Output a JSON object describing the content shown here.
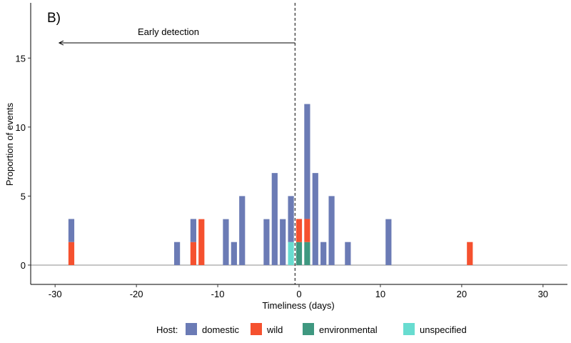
{
  "chart_data": {
    "type": "bar",
    "stacked": true,
    "panel_label": "B)",
    "xlabel": "Timeliness (days)",
    "ylabel": "Proportion of events",
    "xlim": [
      -33,
      33
    ],
    "ylim": [
      -1.4,
      19
    ],
    "x_ticks": [
      -30,
      -20,
      -10,
      0,
      10,
      20,
      30
    ],
    "y_ticks": [
      0,
      5,
      10,
      15
    ],
    "reference_line_x": -0.5,
    "annotation": {
      "text": "Early detection",
      "arrow_from_x": -0.5,
      "arrow_to_x": -29.5,
      "arrow_y": 16.1
    },
    "legend": {
      "title": "Host:",
      "position": "bottom"
    },
    "series": [
      {
        "name": "domestic",
        "color": "#6B7BB5"
      },
      {
        "name": "wild",
        "color": "#F5512F"
      },
      {
        "name": "environmental",
        "color": "#3F9880"
      },
      {
        "name": "unspecified",
        "color": "#68DCD0"
      }
    ],
    "bars": [
      {
        "x": -28,
        "domestic": 1.67,
        "wild": 1.67,
        "environmental": 0,
        "unspecified": 0
      },
      {
        "x": -15,
        "domestic": 1.67,
        "wild": 0,
        "environmental": 0,
        "unspecified": 0
      },
      {
        "x": -13,
        "domestic": 1.67,
        "wild": 1.67,
        "environmental": 0,
        "unspecified": 0
      },
      {
        "x": -12,
        "domestic": 0,
        "wild": 3.33,
        "environmental": 0,
        "unspecified": 0
      },
      {
        "x": -9,
        "domestic": 3.33,
        "wild": 0,
        "environmental": 0,
        "unspecified": 0
      },
      {
        "x": -8,
        "domestic": 1.67,
        "wild": 0,
        "environmental": 0,
        "unspecified": 0
      },
      {
        "x": -7,
        "domestic": 5.0,
        "wild": 0,
        "environmental": 0,
        "unspecified": 0
      },
      {
        "x": -4,
        "domestic": 3.33,
        "wild": 0,
        "environmental": 0,
        "unspecified": 0
      },
      {
        "x": -3,
        "domestic": 6.67,
        "wild": 0,
        "environmental": 0,
        "unspecified": 0
      },
      {
        "x": -2,
        "domestic": 3.33,
        "wild": 0,
        "environmental": 0,
        "unspecified": 0
      },
      {
        "x": -1,
        "domestic": 3.33,
        "wild": 0,
        "environmental": 0,
        "unspecified": 1.67
      },
      {
        "x": 0,
        "domestic": 0,
        "wild": 1.67,
        "environmental": 1.67,
        "unspecified": 0
      },
      {
        "x": 1,
        "domestic": 8.33,
        "wild": 1.67,
        "environmental": 1.67,
        "unspecified": 0
      },
      {
        "x": 2,
        "domestic": 6.67,
        "wild": 0,
        "environmental": 0,
        "unspecified": 0
      },
      {
        "x": 3,
        "domestic": 1.67,
        "wild": 0,
        "environmental": 0,
        "unspecified": 0
      },
      {
        "x": 4,
        "domestic": 5.0,
        "wild": 0,
        "environmental": 0,
        "unspecified": 0
      },
      {
        "x": 6,
        "domestic": 1.67,
        "wild": 0,
        "environmental": 0,
        "unspecified": 0
      },
      {
        "x": 11,
        "domestic": 3.33,
        "wild": 0,
        "environmental": 0,
        "unspecified": 0
      },
      {
        "x": 21,
        "domestic": 0,
        "wild": 1.67,
        "environmental": 0,
        "unspecified": 0
      }
    ]
  }
}
